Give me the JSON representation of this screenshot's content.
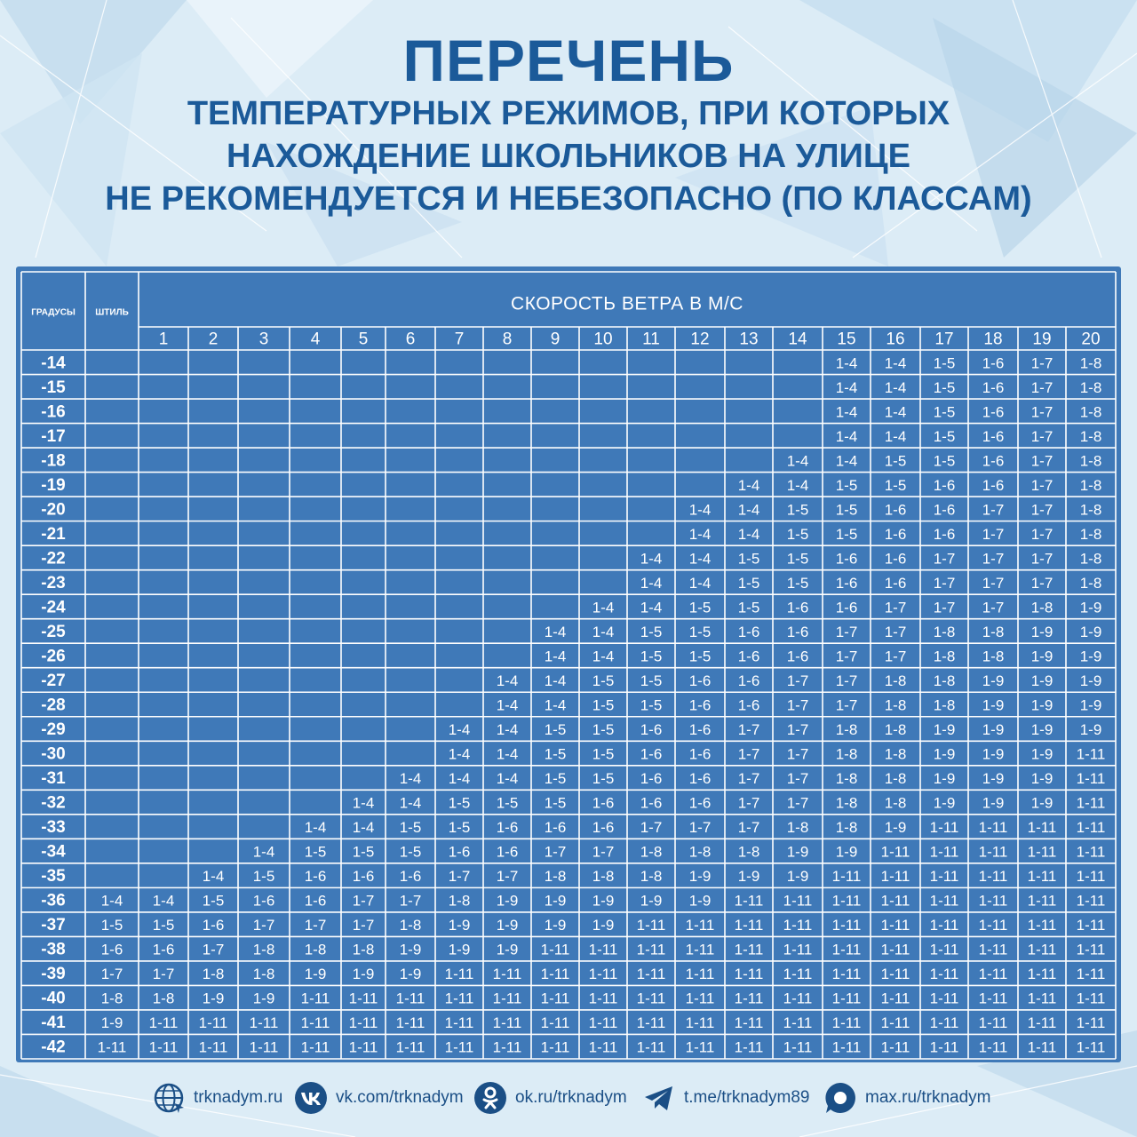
{
  "title": {
    "line1": "ПЕРЕЧЕНЬ",
    "line2": "ТЕМПЕРАТУРНЫХ РЕЖИМОВ, ПРИ КОТОРЫХ",
    "line3": "НАХОЖДЕНИЕ ШКОЛЬНИКОВ НА УЛИЦЕ",
    "line4": "НЕ РЕКОМЕНДУЕТСЯ И НЕБЕЗОПАСНО (ПО КЛАССАМ)"
  },
  "table": {
    "degrees_header": "ГРАДУСЫ",
    "calm_header": "ШТИЛЬ",
    "wind_header": "СКОРОСТЬ ВЕТРА В М/С",
    "wind_speeds": [
      "1",
      "2",
      "3",
      "4",
      "5",
      "6",
      "7",
      "8",
      "9",
      "10",
      "11",
      "12",
      "13",
      "14",
      "15",
      "16",
      "17",
      "18",
      "19",
      "20"
    ],
    "rows": [
      {
        "t": "-14",
        "c": [
          "",
          "",
          "",
          "",
          "",
          "",
          "",
          "",
          "",
          "",
          "",
          "",
          "",
          "",
          "",
          "1-4",
          "1-4",
          "1-5",
          "1-6",
          "1-7",
          "1-8"
        ]
      },
      {
        "t": "-15",
        "c": [
          "",
          "",
          "",
          "",
          "",
          "",
          "",
          "",
          "",
          "",
          "",
          "",
          "",
          "",
          "",
          "1-4",
          "1-4",
          "1-5",
          "1-6",
          "1-7",
          "1-8"
        ]
      },
      {
        "t": "-16",
        "c": [
          "",
          "",
          "",
          "",
          "",
          "",
          "",
          "",
          "",
          "",
          "",
          "",
          "",
          "",
          "",
          "1-4",
          "1-4",
          "1-5",
          "1-6",
          "1-7",
          "1-8"
        ]
      },
      {
        "t": "-17",
        "c": [
          "",
          "",
          "",
          "",
          "",
          "",
          "",
          "",
          "",
          "",
          "",
          "",
          "",
          "",
          "",
          "1-4",
          "1-4",
          "1-5",
          "1-6",
          "1-7",
          "1-8"
        ]
      },
      {
        "t": "-18",
        "c": [
          "",
          "",
          "",
          "",
          "",
          "",
          "",
          "",
          "",
          "",
          "",
          "",
          "",
          "",
          "1-4",
          "1-4",
          "1-5",
          "1-5",
          "1-6",
          "1-7",
          "1-8"
        ]
      },
      {
        "t": "-19",
        "c": [
          "",
          "",
          "",
          "",
          "",
          "",
          "",
          "",
          "",
          "",
          "",
          "",
          "",
          "1-4",
          "1-4",
          "1-5",
          "1-5",
          "1-6",
          "1-6",
          "1-7",
          "1-8"
        ]
      },
      {
        "t": "-20",
        "c": [
          "",
          "",
          "",
          "",
          "",
          "",
          "",
          "",
          "",
          "",
          "",
          "",
          "1-4",
          "1-4",
          "1-5",
          "1-5",
          "1-6",
          "1-6",
          "1-7",
          "1-7",
          "1-8"
        ]
      },
      {
        "t": "-21",
        "c": [
          "",
          "",
          "",
          "",
          "",
          "",
          "",
          "",
          "",
          "",
          "",
          "",
          "1-4",
          "1-4",
          "1-5",
          "1-5",
          "1-6",
          "1-6",
          "1-7",
          "1-7",
          "1-8"
        ]
      },
      {
        "t": "-22",
        "c": [
          "",
          "",
          "",
          "",
          "",
          "",
          "",
          "",
          "",
          "",
          "",
          "1-4",
          "1-4",
          "1-5",
          "1-5",
          "1-6",
          "1-6",
          "1-7",
          "1-7",
          "1-7",
          "1-8"
        ]
      },
      {
        "t": "-23",
        "c": [
          "",
          "",
          "",
          "",
          "",
          "",
          "",
          "",
          "",
          "",
          "",
          "1-4",
          "1-4",
          "1-5",
          "1-5",
          "1-6",
          "1-6",
          "1-7",
          "1-7",
          "1-7",
          "1-8"
        ]
      },
      {
        "t": "-24",
        "c": [
          "",
          "",
          "",
          "",
          "",
          "",
          "",
          "",
          "",
          "",
          "1-4",
          "1-4",
          "1-5",
          "1-5",
          "1-6",
          "1-6",
          "1-7",
          "1-7",
          "1-7",
          "1-8",
          "1-9"
        ]
      },
      {
        "t": "-25",
        "c": [
          "",
          "",
          "",
          "",
          "",
          "",
          "",
          "",
          "",
          "1-4",
          "1-4",
          "1-5",
          "1-5",
          "1-6",
          "1-6",
          "1-7",
          "1-7",
          "1-8",
          "1-8",
          "1-9",
          "1-9"
        ]
      },
      {
        "t": "-26",
        "c": [
          "",
          "",
          "",
          "",
          "",
          "",
          "",
          "",
          "",
          "1-4",
          "1-4",
          "1-5",
          "1-5",
          "1-6",
          "1-6",
          "1-7",
          "1-7",
          "1-8",
          "1-8",
          "1-9",
          "1-9"
        ]
      },
      {
        "t": "-27",
        "c": [
          "",
          "",
          "",
          "",
          "",
          "",
          "",
          "",
          "1-4",
          "1-4",
          "1-5",
          "1-5",
          "1-6",
          "1-6",
          "1-7",
          "1-7",
          "1-8",
          "1-8",
          "1-9",
          "1-9",
          "1-9"
        ]
      },
      {
        "t": "-28",
        "c": [
          "",
          "",
          "",
          "",
          "",
          "",
          "",
          "",
          "1-4",
          "1-4",
          "1-5",
          "1-5",
          "1-6",
          "1-6",
          "1-7",
          "1-7",
          "1-8",
          "1-8",
          "1-9",
          "1-9",
          "1-9"
        ]
      },
      {
        "t": "-29",
        "c": [
          "",
          "",
          "",
          "",
          "",
          "",
          "",
          "1-4",
          "1-4",
          "1-5",
          "1-5",
          "1-6",
          "1-6",
          "1-7",
          "1-7",
          "1-8",
          "1-8",
          "1-9",
          "1-9",
          "1-9",
          "1-9"
        ]
      },
      {
        "t": "-30",
        "c": [
          "",
          "",
          "",
          "",
          "",
          "",
          "",
          "1-4",
          "1-4",
          "1-5",
          "1-5",
          "1-6",
          "1-6",
          "1-7",
          "1-7",
          "1-8",
          "1-8",
          "1-9",
          "1-9",
          "1-9",
          "1-11"
        ]
      },
      {
        "t": "-31",
        "c": [
          "",
          "",
          "",
          "",
          "",
          "",
          "1-4",
          "1-4",
          "1-4",
          "1-5",
          "1-5",
          "1-6",
          "1-6",
          "1-7",
          "1-7",
          "1-8",
          "1-8",
          "1-9",
          "1-9",
          "1-9",
          "1-11"
        ]
      },
      {
        "t": "-32",
        "c": [
          "",
          "",
          "",
          "",
          "",
          "1-4",
          "1-4",
          "1-5",
          "1-5",
          "1-5",
          "1-6",
          "1-6",
          "1-6",
          "1-7",
          "1-7",
          "1-8",
          "1-8",
          "1-9",
          "1-9",
          "1-9",
          "1-11"
        ]
      },
      {
        "t": "-33",
        "c": [
          "",
          "",
          "",
          "",
          "1-4",
          "1-4",
          "1-5",
          "1-5",
          "1-6",
          "1-6",
          "1-6",
          "1-7",
          "1-7",
          "1-7",
          "1-8",
          "1-8",
          "1-9",
          "1-11",
          "1-11",
          "1-11",
          "1-11"
        ]
      },
      {
        "t": "-34",
        "c": [
          "",
          "",
          "",
          "1-4",
          "1-5",
          "1-5",
          "1-5",
          "1-6",
          "1-6",
          "1-7",
          "1-7",
          "1-8",
          "1-8",
          "1-8",
          "1-9",
          "1-9",
          "1-11",
          "1-11",
          "1-11",
          "1-11",
          "1-11"
        ]
      },
      {
        "t": "-35",
        "c": [
          "",
          "",
          "1-4",
          "1-5",
          "1-6",
          "1-6",
          "1-6",
          "1-7",
          "1-7",
          "1-8",
          "1-8",
          "1-8",
          "1-9",
          "1-9",
          "1-9",
          "1-11",
          "1-11",
          "1-11",
          "1-11",
          "1-11",
          "1-11"
        ]
      },
      {
        "t": "-36",
        "c": [
          "1-4",
          "1-4",
          "1-5",
          "1-6",
          "1-6",
          "1-7",
          "1-7",
          "1-8",
          "1-9",
          "1-9",
          "1-9",
          "1-9",
          "1-9",
          "1-11",
          "1-11",
          "1-11",
          "1-11",
          "1-11",
          "1-11",
          "1-11",
          "1-11"
        ]
      },
      {
        "t": "-37",
        "c": [
          "1-5",
          "1-5",
          "1-6",
          "1-7",
          "1-7",
          "1-7",
          "1-8",
          "1-9",
          "1-9",
          "1-9",
          "1-9",
          "1-11",
          "1-11",
          "1-11",
          "1-11",
          "1-11",
          "1-11",
          "1-11",
          "1-11",
          "1-11",
          "1-11"
        ]
      },
      {
        "t": "-38",
        "c": [
          "1-6",
          "1-6",
          "1-7",
          "1-8",
          "1-8",
          "1-8",
          "1-9",
          "1-9",
          "1-9",
          "1-11",
          "1-11",
          "1-11",
          "1-11",
          "1-11",
          "1-11",
          "1-11",
          "1-11",
          "1-11",
          "1-11",
          "1-11",
          "1-11"
        ]
      },
      {
        "t": "-39",
        "c": [
          "1-7",
          "1-7",
          "1-8",
          "1-8",
          "1-9",
          "1-9",
          "1-9",
          "1-11",
          "1-11",
          "1-11",
          "1-11",
          "1-11",
          "1-11",
          "1-11",
          "1-11",
          "1-11",
          "1-11",
          "1-11",
          "1-11",
          "1-11",
          "1-11"
        ]
      },
      {
        "t": "-40",
        "c": [
          "1-8",
          "1-8",
          "1-9",
          "1-9",
          "1-11",
          "1-11",
          "1-11",
          "1-11",
          "1-11",
          "1-11",
          "1-11",
          "1-11",
          "1-11",
          "1-11",
          "1-11",
          "1-11",
          "1-11",
          "1-11",
          "1-11",
          "1-11",
          "1-11"
        ]
      },
      {
        "t": "-41",
        "c": [
          "1-9",
          "1-11",
          "1-11",
          "1-11",
          "1-11",
          "1-11",
          "1-11",
          "1-11",
          "1-11",
          "1-11",
          "1-11",
          "1-11",
          "1-11",
          "1-11",
          "1-11",
          "1-11",
          "1-11",
          "1-11",
          "1-11",
          "1-11",
          "1-11"
        ]
      },
      {
        "t": "-42",
        "c": [
          "1-11",
          "1-11",
          "1-11",
          "1-11",
          "1-11",
          "1-11",
          "1-11",
          "1-11",
          "1-11",
          "1-11",
          "1-11",
          "1-11",
          "1-11",
          "1-11",
          "1-11",
          "1-11",
          "1-11",
          "1-11",
          "1-11",
          "1-11",
          "1-11"
        ]
      }
    ]
  },
  "footer": {
    "links": [
      {
        "icon": "globe-icon",
        "label": "trknadym.ru"
      },
      {
        "icon": "vk-icon",
        "label": "vk.com/trknadym"
      },
      {
        "icon": "odnoklassniki-icon",
        "label": "ok.ru/trknadym"
      },
      {
        "icon": "telegram-icon",
        "label": "t.me/trknadym89"
      },
      {
        "icon": "max-chat-icon",
        "label": "max.ru/trknadym"
      }
    ]
  },
  "colors": {
    "title": "#1b5a99",
    "table_bg": "#3f79b8",
    "grid_line": "#ffffff",
    "background": "#dcecf6",
    "footer_text": "#1b4f86"
  }
}
